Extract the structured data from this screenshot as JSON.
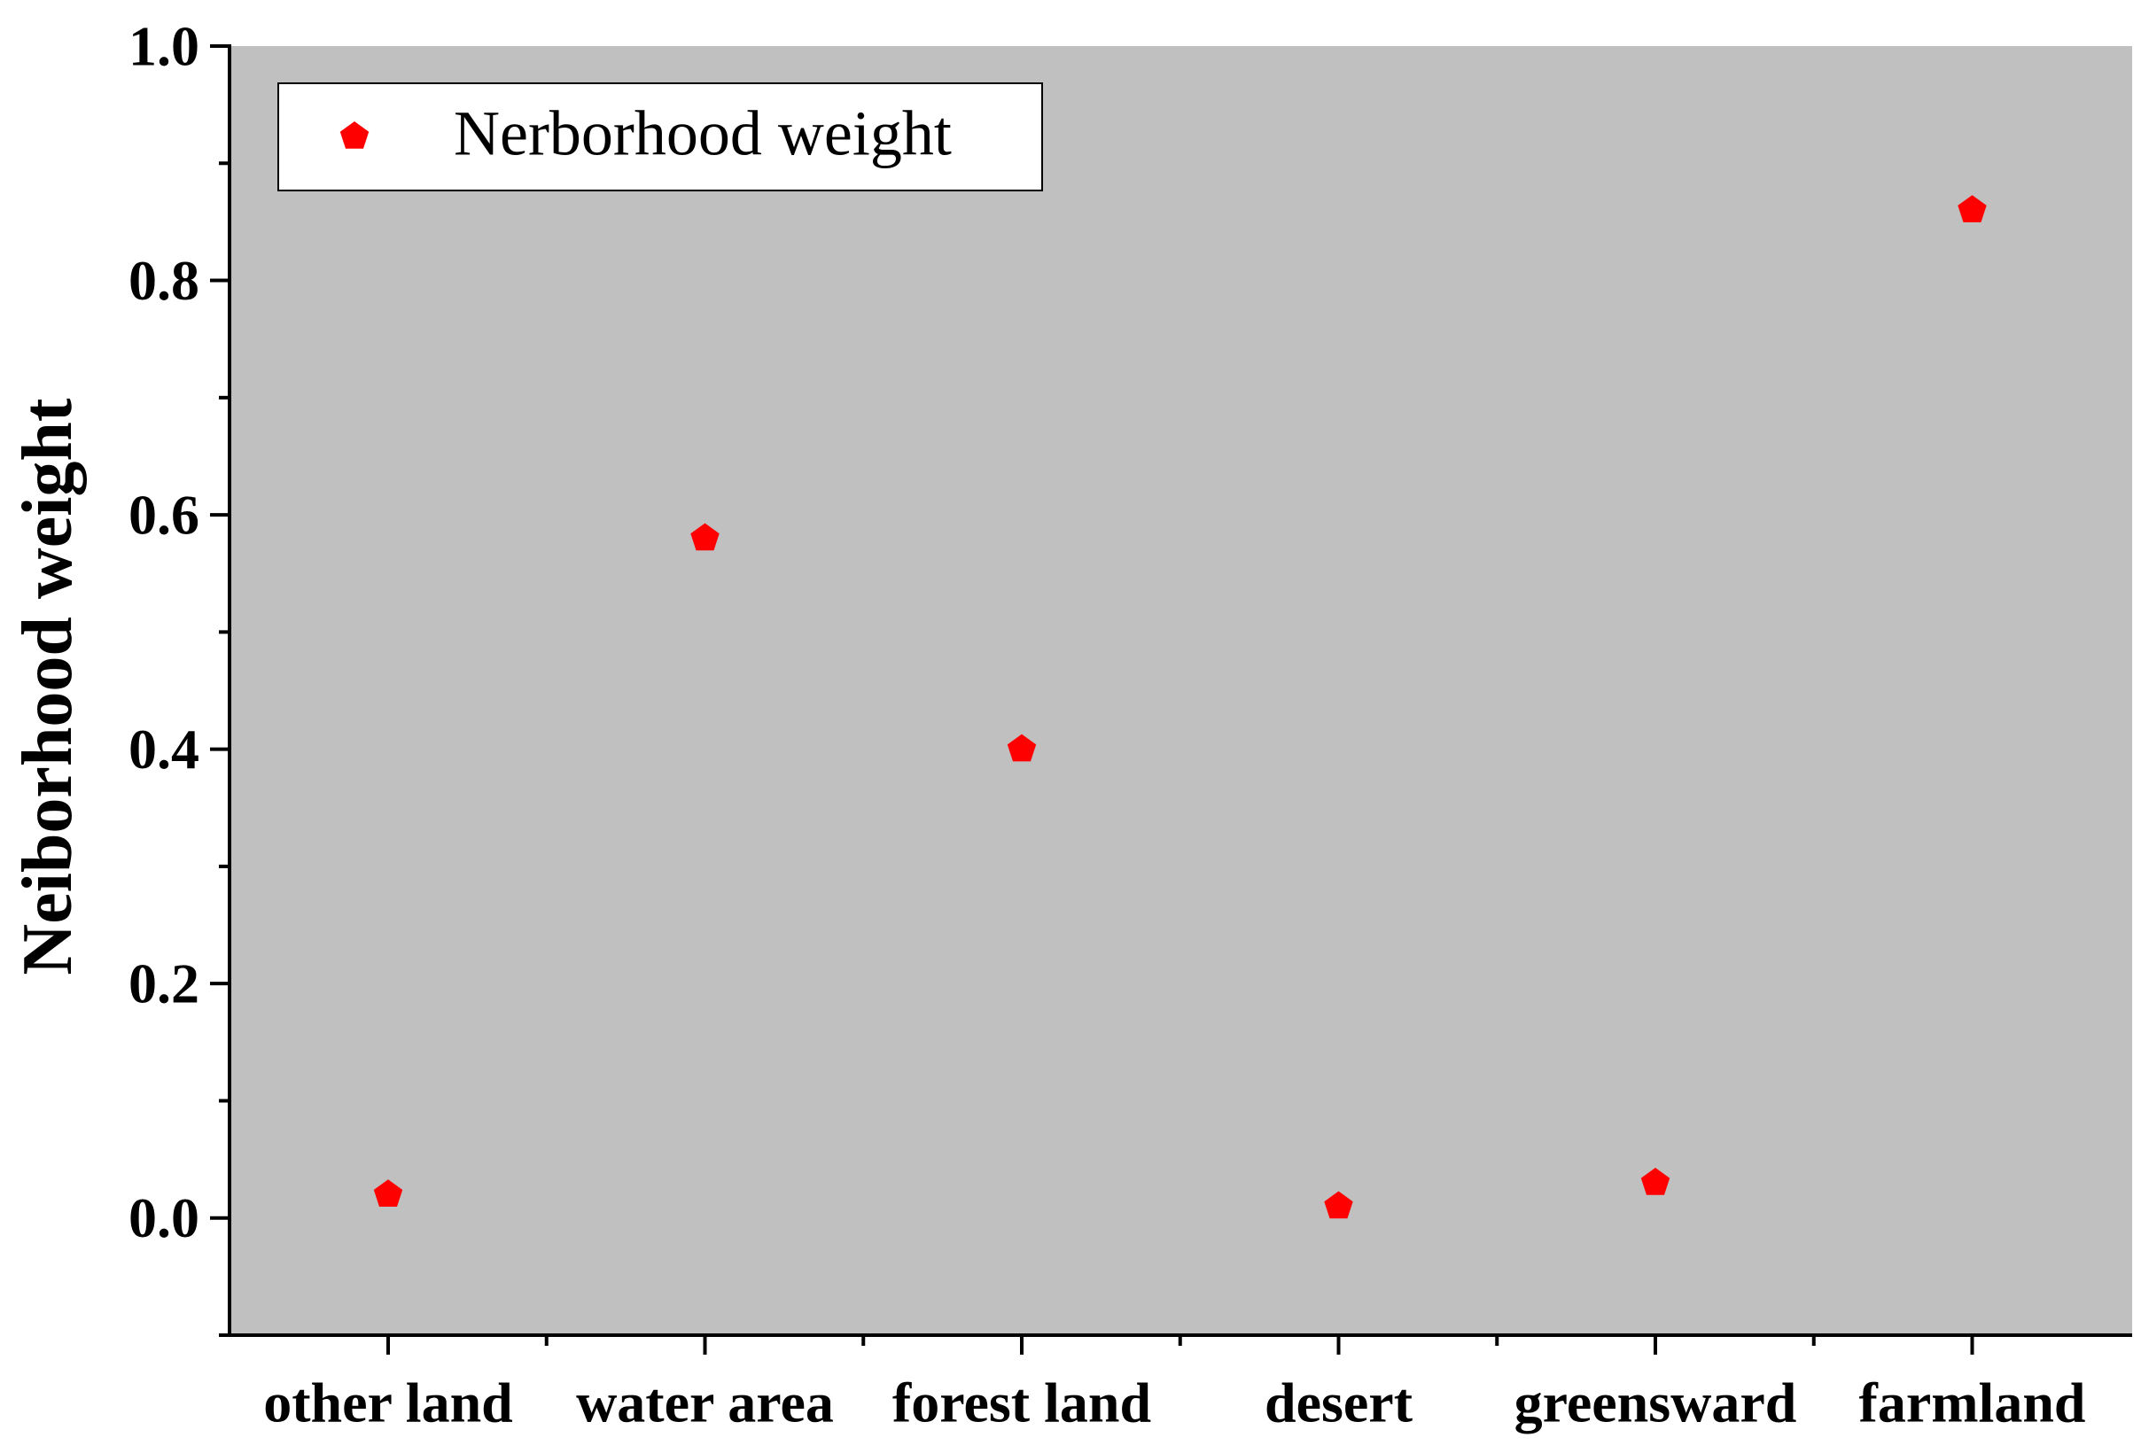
{
  "chart_data": {
    "type": "scatter",
    "title": "",
    "xlabel": "",
    "ylabel": "Neiborhood weight",
    "categories": [
      "other land",
      "water area",
      "forest land",
      "desert",
      "greensward",
      "farmland"
    ],
    "series": [
      {
        "name": "Nerborhood weight",
        "values": [
          0.02,
          0.58,
          0.4,
          0.01,
          0.03,
          0.86
        ],
        "color": "#ff0000",
        "marker": "pentagon"
      }
    ],
    "ylim": [
      -0.1,
      1.0
    ],
    "yticks": [
      "0.0",
      "0.2",
      "0.4",
      "0.6",
      "0.8",
      "1.0"
    ],
    "plot_background": "#c0c0c0",
    "grid": false,
    "legend": {
      "position": "top-left"
    }
  }
}
